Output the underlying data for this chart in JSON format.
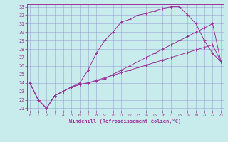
{
  "xlabel": "Windchill (Refroidissement éolien,°C)",
  "bg_color": "#c8ecec",
  "line_color": "#993399",
  "grid_color": "#8888cc",
  "xticks": [
    0,
    1,
    2,
    3,
    4,
    5,
    6,
    7,
    8,
    9,
    10,
    11,
    12,
    13,
    14,
    15,
    16,
    17,
    18,
    19,
    20,
    21,
    22,
    23
  ],
  "yticks": [
    21,
    22,
    23,
    24,
    25,
    26,
    27,
    28,
    29,
    30,
    31,
    32,
    33
  ],
  "line1_x": [
    0,
    1,
    2,
    3,
    4,
    5,
    6,
    7,
    8,
    9,
    10,
    11,
    12,
    13,
    14,
    15,
    16,
    17,
    18,
    19,
    20,
    21,
    22,
    23
  ],
  "line1_y": [
    24,
    22,
    21,
    22.5,
    23,
    23.5,
    23.8,
    24.0,
    24.2,
    24.5,
    25.0,
    25.5,
    26.0,
    26.5,
    27.0,
    27.5,
    28.0,
    28.5,
    29.0,
    29.5,
    30.0,
    30.5,
    31.0,
    26.5
  ],
  "line2_x": [
    0,
    1,
    2,
    3,
    4,
    5,
    6,
    7,
    8,
    9,
    10,
    11,
    12,
    13,
    14,
    15,
    16,
    17,
    18,
    19,
    20,
    21,
    22,
    23
  ],
  "line2_y": [
    24,
    22,
    21,
    22.5,
    23.0,
    23.5,
    24.0,
    25.5,
    27.5,
    29.0,
    30.0,
    31.2,
    31.5,
    32.0,
    32.2,
    32.5,
    32.8,
    33.0,
    33.0,
    32.0,
    31.0,
    29.0,
    27.5,
    26.5
  ],
  "line3_x": [
    0,
    1,
    2,
    3,
    4,
    5,
    6,
    7,
    8,
    9,
    10,
    11,
    12,
    13,
    14,
    15,
    16,
    17,
    18,
    19,
    20,
    21,
    22,
    23
  ],
  "line3_y": [
    24,
    22,
    21,
    22.5,
    23.0,
    23.5,
    23.8,
    24.0,
    24.3,
    24.6,
    24.9,
    25.2,
    25.5,
    25.8,
    26.1,
    26.4,
    26.7,
    27.0,
    27.3,
    27.6,
    27.9,
    28.2,
    28.5,
    26.5
  ]
}
